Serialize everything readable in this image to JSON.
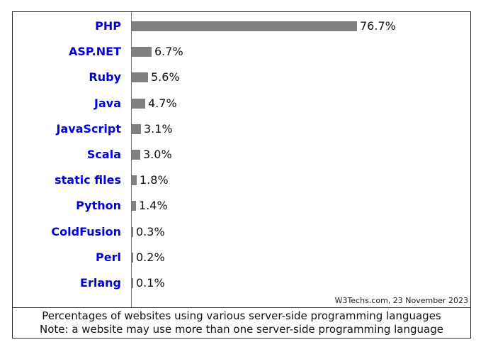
{
  "chart_data": {
    "type": "bar",
    "orientation": "horizontal",
    "categories": [
      "PHP",
      "ASP.NET",
      "Ruby",
      "Java",
      "JavaScript",
      "Scala",
      "static files",
      "Python",
      "ColdFusion",
      "Perl",
      "Erlang"
    ],
    "values": [
      76.7,
      6.7,
      5.6,
      4.7,
      3.1,
      3.0,
      1.8,
      1.4,
      0.3,
      0.2,
      0.1
    ],
    "value_labels": [
      "76.7%",
      "6.7%",
      "5.6%",
      "4.7%",
      "3.1%",
      "3.0%",
      "1.8%",
      "1.4%",
      "0.3%",
      "0.2%",
      "0.1%"
    ],
    "title": "",
    "xlabel": "",
    "ylabel": "",
    "unit": "%",
    "grid": false,
    "bar_color": "#808080",
    "label_color": "#0000dd"
  },
  "source": "W3Techs.com, 23 November 2023",
  "caption": {
    "line1": "Percentages of websites using various server-side programming languages",
    "line2": "Note: a website may use more than one server-side programming language"
  }
}
